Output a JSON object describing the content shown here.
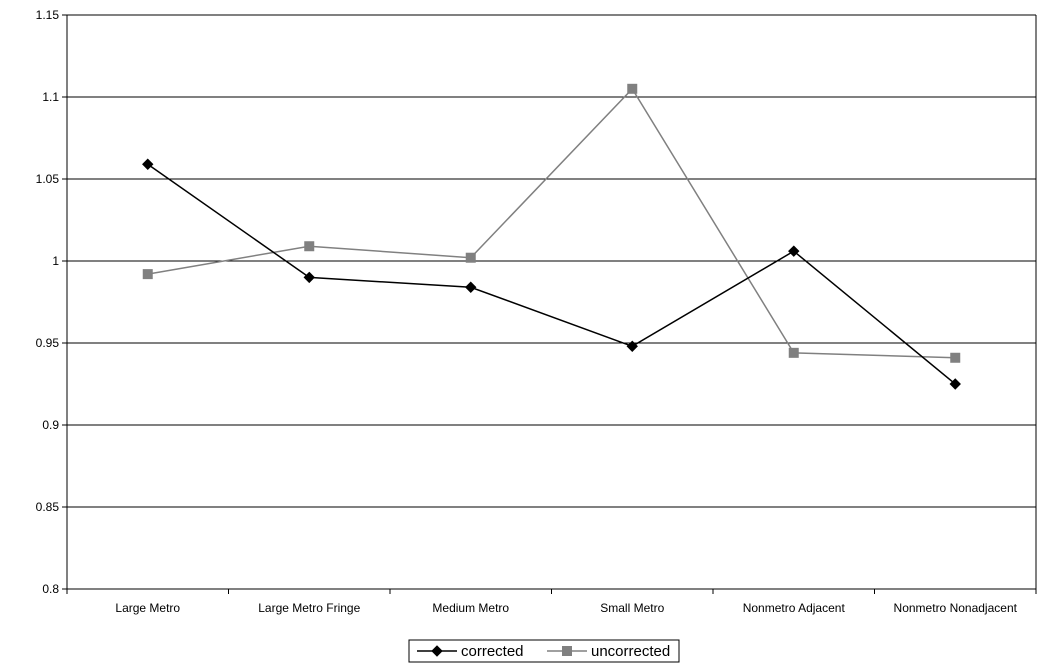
{
  "chart_data": {
    "type": "line",
    "title": "",
    "xlabel": "",
    "ylabel": "",
    "categories": [
      "Large Metro",
      "Large Metro Fringe",
      "Medium Metro",
      "Small Metro",
      "Nonmetro Adjacent",
      "Nonmetro Nonadjacent"
    ],
    "ylim": [
      0.8,
      1.15
    ],
    "y_ticks": [
      0.8,
      0.85,
      0.9,
      0.95,
      1,
      1.05,
      1.1,
      1.15
    ],
    "y_tick_labels": [
      "0.8",
      "0.85",
      "0.9",
      "0.95",
      "1",
      "1.05",
      "1.1",
      "1.15"
    ],
    "grid": true,
    "legend_position": "bottom",
    "series": [
      {
        "name": "corrected",
        "values": [
          1.059,
          0.99,
          0.984,
          0.948,
          1.006,
          0.925
        ],
        "color": "#000000",
        "marker": "diamond"
      },
      {
        "name": "uncorrected",
        "values": [
          0.992,
          1.009,
          1.002,
          1.105,
          0.944,
          0.941
        ],
        "color": "#808080",
        "marker": "square"
      }
    ]
  }
}
